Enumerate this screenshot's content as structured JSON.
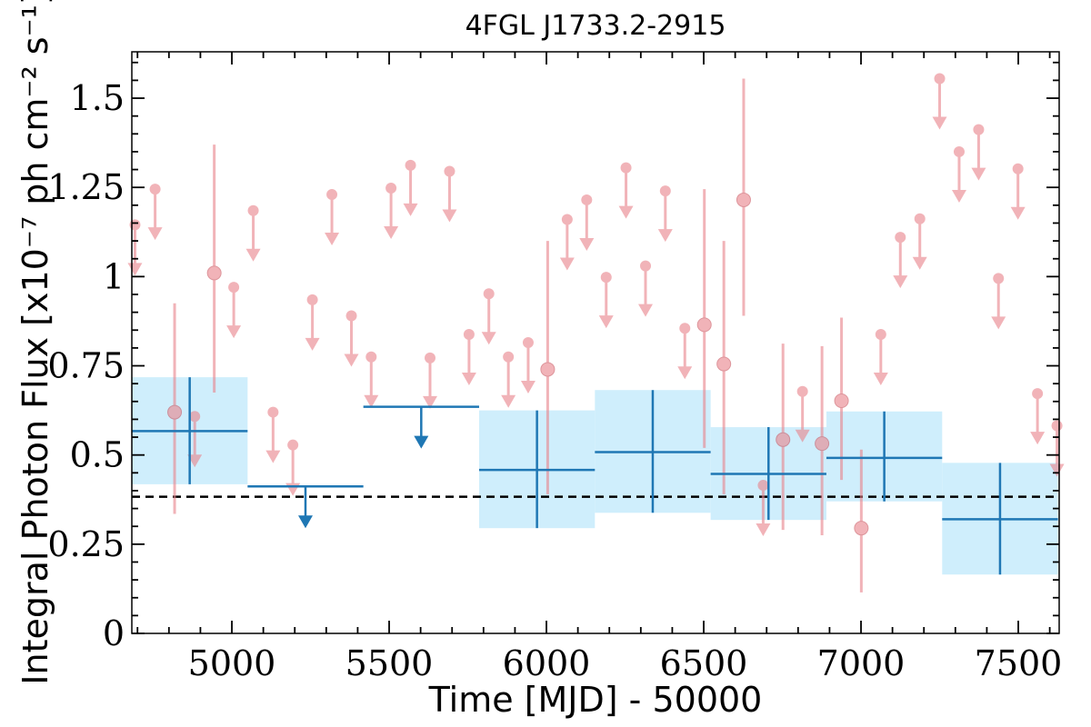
{
  "chart_data": {
    "type": "scatter",
    "title": "4FGL J1733.2-2915",
    "xlabel": "Time [MJD] - 50000",
    "ylabel": "Integral Photon Flux [x10⁻⁷ ph cm⁻² s⁻¹]",
    "xlim": [
      4682,
      7630
    ],
    "ylim": [
      0,
      1.63
    ],
    "x_ticks": [
      5000,
      5500,
      6000,
      6500,
      7000,
      7500
    ],
    "x_tick_labels": [
      "5000",
      "5500",
      "6000",
      "6500",
      "7000",
      "7500"
    ],
    "y_ticks": [
      0,
      0.25,
      0.5,
      0.75,
      1,
      1.25,
      1.5
    ],
    "y_tick_labels": [
      "0",
      "0.25",
      "0.5",
      "0.75",
      "1",
      "1.25",
      "1.5"
    ],
    "grid": false,
    "reference_line": {
      "y": 0.383,
      "style": "dashed",
      "color": "#000000"
    },
    "colors": {
      "short_bins": "#e8828a",
      "long_bins": "#1f77b4",
      "long_band": "#cfeefc",
      "axis": "#000000"
    },
    "series": [
      {
        "points": [
          {
            "x": 4692,
            "y": 1.145,
            "ul": true
          },
          {
            "x": 4756,
            "y": 1.245,
            "ul": true
          },
          {
            "x": 4818,
            "y": 0.62,
            "lo": 0.335,
            "hi": 0.925
          },
          {
            "x": 4882,
            "y": 0.608,
            "ul": true
          },
          {
            "x": 4944,
            "y": 1.01,
            "lo": 0.675,
            "hi": 1.37
          },
          {
            "x": 5006,
            "y": 0.97,
            "ul": true
          },
          {
            "x": 5068,
            "y": 1.185,
            "ul": true
          },
          {
            "x": 5131,
            "y": 0.62,
            "ul": true
          },
          {
            "x": 5194,
            "y": 0.528,
            "ul": true
          },
          {
            "x": 5256,
            "y": 0.935,
            "ul": true
          },
          {
            "x": 5318,
            "y": 1.23,
            "ul": true
          },
          {
            "x": 5380,
            "y": 0.89,
            "ul": true
          },
          {
            "x": 5443,
            "y": 0.775,
            "ul": true
          },
          {
            "x": 5506,
            "y": 1.248,
            "ul": true
          },
          {
            "x": 5568,
            "y": 1.312,
            "ul": true
          },
          {
            "x": 5630,
            "y": 0.772,
            "ul": true
          },
          {
            "x": 5692,
            "y": 1.295,
            "ul": true
          },
          {
            "x": 5754,
            "y": 0.838,
            "ul": true
          },
          {
            "x": 5817,
            "y": 0.952,
            "ul": true
          },
          {
            "x": 5879,
            "y": 0.775,
            "ul": true
          },
          {
            "x": 5942,
            "y": 0.815,
            "ul": true
          },
          {
            "x": 6004,
            "y": 0.74,
            "lo": 0.39,
            "hi": 1.1
          },
          {
            "x": 6066,
            "y": 1.16,
            "ul": true
          },
          {
            "x": 6128,
            "y": 1.215,
            "ul": true
          },
          {
            "x": 6190,
            "y": 0.998,
            "ul": true
          },
          {
            "x": 6253,
            "y": 1.305,
            "ul": true
          },
          {
            "x": 6315,
            "y": 1.03,
            "ul": true
          },
          {
            "x": 6378,
            "y": 1.24,
            "ul": true
          },
          {
            "x": 6440,
            "y": 0.855,
            "ul": true
          },
          {
            "x": 6502,
            "y": 0.865,
            "lo": 0.52,
            "hi": 1.245
          },
          {
            "x": 6564,
            "y": 0.755,
            "lo": 0.39,
            "hi": 1.1
          },
          {
            "x": 6627,
            "y": 1.215,
            "lo": 0.89,
            "hi": 1.555
          },
          {
            "x": 6689,
            "y": 0.415,
            "ul": true
          },
          {
            "x": 6752,
            "y": 0.543,
            "lo": 0.29,
            "hi": 0.812
          },
          {
            "x": 6814,
            "y": 0.678,
            "ul": true
          },
          {
            "x": 6876,
            "y": 0.532,
            "lo": 0.275,
            "hi": 0.805
          },
          {
            "x": 6938,
            "y": 0.652,
            "lo": 0.43,
            "hi": 0.885
          },
          {
            "x": 7001,
            "y": 0.295,
            "lo": 0.115,
            "hi": 0.515
          },
          {
            "x": 7063,
            "y": 0.838,
            "ul": true
          },
          {
            "x": 7125,
            "y": 1.11,
            "ul": true
          },
          {
            "x": 7187,
            "y": 1.162,
            "ul": true
          },
          {
            "x": 7250,
            "y": 1.555,
            "ul": true
          },
          {
            "x": 7312,
            "y": 1.35,
            "ul": true
          },
          {
            "x": 7374,
            "y": 1.412,
            "ul": true
          },
          {
            "x": 7437,
            "y": 0.995,
            "ul": true
          },
          {
            "x": 7499,
            "y": 1.302,
            "ul": true
          },
          {
            "x": 7561,
            "y": 0.672,
            "ul": true
          },
          {
            "x": 7623,
            "y": 0.582,
            "ul": true
          }
        ]
      },
      {
        "bins": [
          {
            "x": 4866,
            "x0": 4682,
            "x1": 5050,
            "y": 0.567,
            "lo": 0.418,
            "hi": 0.718
          },
          {
            "x": 5234,
            "x0": 5050,
            "x1": 5418,
            "y": 0.412,
            "ul": true
          },
          {
            "x": 5602,
            "x0": 5418,
            "x1": 5786,
            "y": 0.635,
            "ul": true
          },
          {
            "x": 5970,
            "x0": 5786,
            "x1": 6154,
            "y": 0.458,
            "lo": 0.295,
            "hi": 0.625
          },
          {
            "x": 6338,
            "x0": 6154,
            "x1": 6522,
            "y": 0.508,
            "lo": 0.338,
            "hi": 0.682
          },
          {
            "x": 6706,
            "x0": 6522,
            "x1": 6890,
            "y": 0.447,
            "lo": 0.318,
            "hi": 0.578
          },
          {
            "x": 7074,
            "x0": 6890,
            "x1": 7258,
            "y": 0.492,
            "lo": 0.37,
            "hi": 0.622
          },
          {
            "x": 7442,
            "x0": 7258,
            "x1": 7626,
            "y": 0.32,
            "lo": 0.165,
            "hi": 0.478
          }
        ]
      }
    ]
  }
}
